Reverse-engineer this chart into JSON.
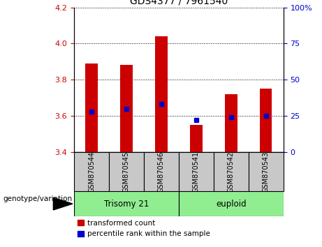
{
  "title": "GDS4377 / 7961540",
  "samples": [
    "GSM870544",
    "GSM870545",
    "GSM870546",
    "GSM870541",
    "GSM870542",
    "GSM870543"
  ],
  "red_values": [
    3.89,
    3.88,
    4.04,
    3.55,
    3.72,
    3.75
  ],
  "blue_percentiles": [
    28,
    30,
    33,
    22,
    24,
    25
  ],
  "y_min": 3.4,
  "y_max": 4.2,
  "y_ticks_left": [
    3.4,
    3.6,
    3.8,
    4.0,
    4.2
  ],
  "y_ticks_right": [
    0,
    25,
    50,
    75,
    100
  ],
  "group1_label": "Trisomy 21",
  "group2_label": "euploid",
  "group_color": "#90EE90",
  "bar_color": "#CC0000",
  "marker_color": "#0000CC",
  "tick_color_left": "#CC0000",
  "tick_color_right": "#0000CC",
  "legend_bar_label": "transformed count",
  "legend_marker_label": "percentile rank within the sample",
  "genotype_label": "genotype/variation",
  "label_bg_color": "#C8C8C8",
  "bar_baseline": 3.4
}
